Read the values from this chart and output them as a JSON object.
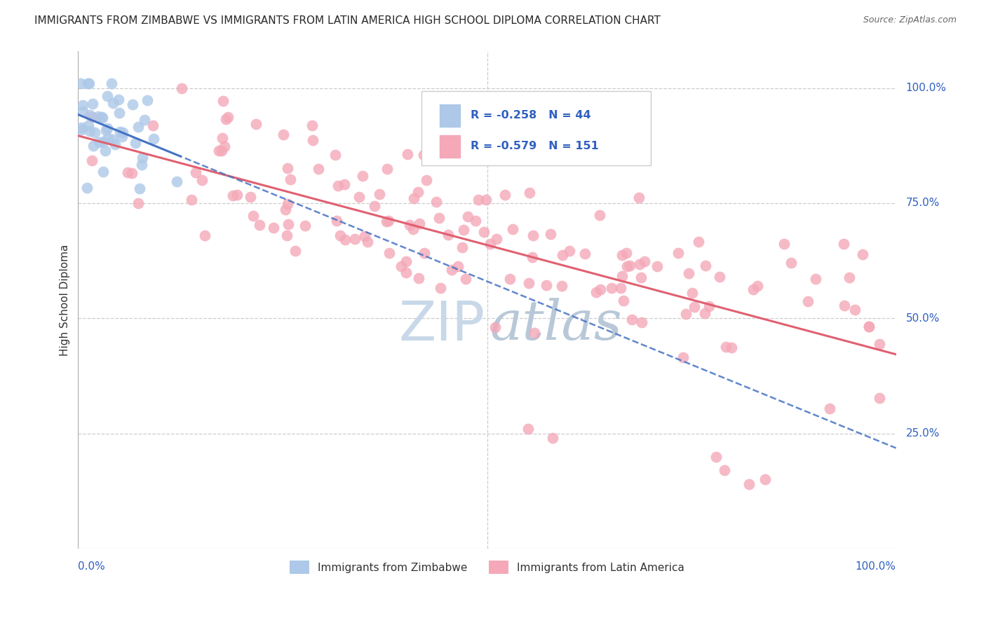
{
  "title": "IMMIGRANTS FROM ZIMBABWE VS IMMIGRANTS FROM LATIN AMERICA HIGH SCHOOL DIPLOMA CORRELATION CHART",
  "source": "Source: ZipAtlas.com",
  "ylabel": "High School Diploma",
  "r_zimbabwe": -0.258,
  "n_zimbabwe": 44,
  "r_latin": -0.579,
  "n_latin": 151,
  "background_color": "#ffffff",
  "grid_color": "#cccccc",
  "zimbabwe_fill": "#adc8e8",
  "zimbabwe_line": "#4472c4",
  "latin_fill": "#f4a8b8",
  "latin_line": "#e06070",
  "watermark_zip_color": "#c8d8e8",
  "watermark_atlas_color": "#b8c8d8",
  "legend_color": "#3060c0",
  "ytick_values": [
    1.0,
    0.75,
    0.5,
    0.25
  ],
  "ytick_labels": [
    "100.0%",
    "75.0%",
    "50.0%",
    "25.0%"
  ],
  "title_fontsize": 11,
  "tick_fontsize": 11,
  "legend_fontsize": 11.5
}
